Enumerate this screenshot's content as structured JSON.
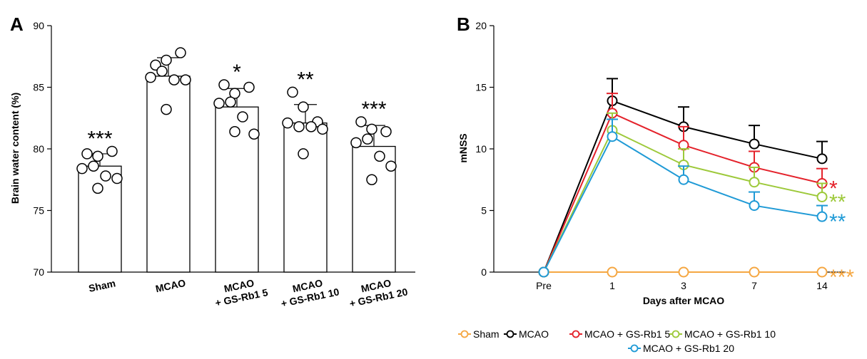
{
  "chart_data": [
    {
      "panel": "A",
      "type": "bar",
      "ylabel": "Brain water content (%)",
      "ylim": [
        70,
        90
      ],
      "yticks": [
        70,
        75,
        80,
        85,
        90
      ],
      "categories": [
        {
          "lines": [
            "Sham"
          ],
          "mean": 78.6,
          "sd": 1.0,
          "sig": "***",
          "points": [
            79.6,
            79.4,
            79.8,
            78.4,
            78.6,
            77.8,
            77.6,
            76.8
          ]
        },
        {
          "lines": [
            "MCAO"
          ],
          "mean": 85.9,
          "sd": 1.5,
          "sig": "",
          "points": [
            86.8,
            87.2,
            87.8,
            85.8,
            86.3,
            85.6,
            85.6,
            83.2
          ]
        },
        {
          "lines": [
            "MCAO",
            "+ GS-Rb1 5"
          ],
          "mean": 83.4,
          "sd": 1.5,
          "sig": "*",
          "points": [
            85.2,
            84.5,
            85.0,
            83.7,
            83.8,
            82.6,
            81.2,
            81.4
          ]
        },
        {
          "lines": [
            "MCAO",
            "+ GS-Rb1 10"
          ],
          "mean": 82.1,
          "sd": 1.5,
          "sig": "**",
          "points": [
            84.6,
            83.4,
            82.2,
            82.1,
            81.8,
            81.8,
            81.6,
            79.6
          ]
        },
        {
          "lines": [
            "MCAO",
            "+ GS-Rb1 20"
          ],
          "mean": 80.2,
          "sd": 1.7,
          "sig": "***",
          "points": [
            82.2,
            81.6,
            81.4,
            80.5,
            80.8,
            79.4,
            78.6,
            77.5
          ]
        }
      ]
    },
    {
      "panel": "B",
      "type": "line",
      "xlabel": "Days after MCAO",
      "ylabel": "mNSS",
      "categories": [
        "Pre",
        "1",
        "3",
        "7",
        "14"
      ],
      "ylim": [
        0,
        20
      ],
      "yticks": [
        0,
        5,
        10,
        15,
        20
      ],
      "series": [
        {
          "name": "Sham",
          "color": "#f5a742",
          "values": [
            0,
            0,
            0,
            0,
            0
          ],
          "err": [
            0,
            0,
            0,
            0,
            0
          ],
          "sig": "***"
        },
        {
          "name": "MCAO",
          "color": "#000000",
          "values": [
            0,
            13.9,
            11.8,
            10.4,
            9.2
          ],
          "err": [
            0,
            1.8,
            1.6,
            1.5,
            1.4
          ],
          "sig": ""
        },
        {
          "name": "MCAO + GS-Rb1 5",
          "color": "#e4222b",
          "values": [
            0,
            12.9,
            10.3,
            8.5,
            7.2
          ],
          "err": [
            0,
            1.6,
            1.5,
            1.3,
            1.2
          ],
          "sig": "*"
        },
        {
          "name": "MCAO + GS-Rb1 10",
          "color": "#9dc93a",
          "values": [
            0,
            11.5,
            8.7,
            7.3,
            6.1
          ],
          "err": [
            0,
            1.4,
            1.3,
            1.2,
            1.1
          ],
          "sig": "**"
        },
        {
          "name": "MCAO + GS-Rb1 20",
          "color": "#1f9ad6",
          "values": [
            0,
            11.0,
            7.5,
            5.4,
            4.5
          ],
          "err": [
            0,
            1.4,
            1.1,
            1.1,
            0.9
          ],
          "sig": "**"
        }
      ]
    }
  ]
}
